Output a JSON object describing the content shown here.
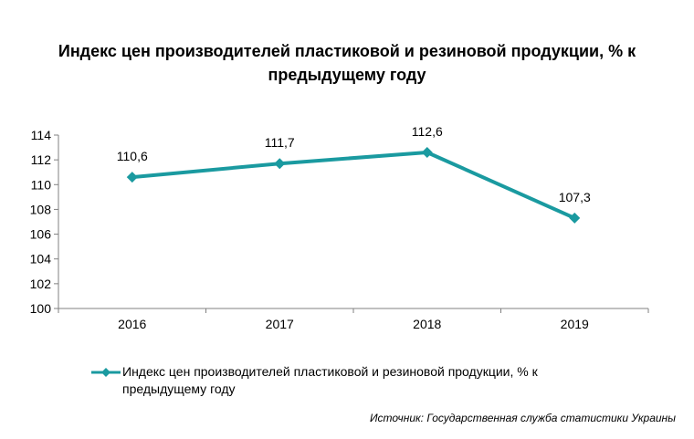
{
  "title_lines": [
    "Индекс цен производителей пластиковой и резиновой продукции, % к",
    "предыдущему году"
  ],
  "source": "Источник: Государственная служба статистики Украины",
  "colors": {
    "series": "#1a9aa0",
    "axis": "#808080"
  },
  "chart_data": {
    "type": "line",
    "title": "Индекс цен производителей пластиковой и резиновой продукции, % к предыдущему году",
    "categories": [
      "2016",
      "2017",
      "2018",
      "2019"
    ],
    "series": [
      {
        "name": "Индекс цен производителей  пластиковой  и резиновой  продукции,  % к предыдущему  году",
        "values": [
          110.6,
          111.7,
          112.6,
          107.3
        ],
        "labels": [
          "110,6",
          "111,7",
          "112,6",
          "107,3"
        ],
        "marker": "diamond"
      }
    ],
    "ylim": [
      100,
      114
    ],
    "yticks": [
      "100",
      "102",
      "104",
      "106",
      "108",
      "110",
      "112",
      "114"
    ],
    "xlabel": "",
    "ylabel": "",
    "grid": false,
    "legend": "bottom"
  },
  "legend": {
    "line1": "Индекс цен производителей  пластиковой  и резиновой  продукции,  % к",
    "line2": "предыдущему  году"
  }
}
